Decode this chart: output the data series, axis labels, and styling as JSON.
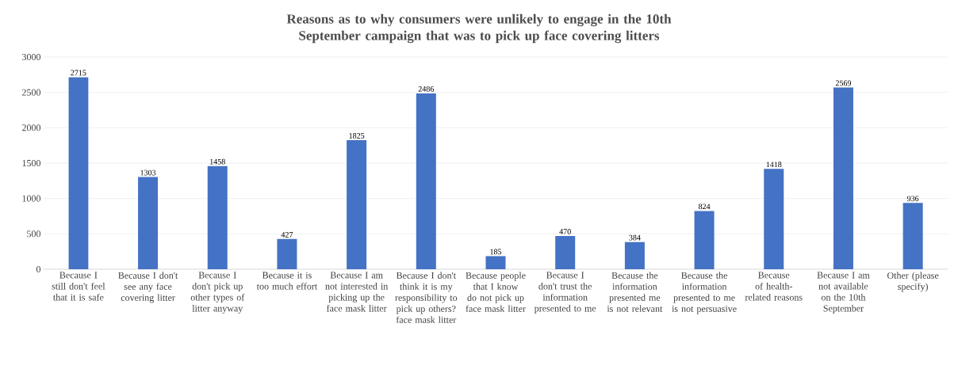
{
  "chart_data": {
    "type": "bar",
    "title": "Reasons as to why consumers were unlikely to engage in the 10th September campaign that was to pick up face covering litters",
    "categories": [
      "Because I still don't feel that it is safe",
      "Because I don't see any face covering litter",
      "Because I don't pick up other types of litter anyway",
      "Because it is too much effort",
      "Because I am not interested in picking up the face mask litter",
      "Because I don't think it is my responsibility to pick up others? face mask litter",
      "Because people that I know do not pick up face mask litter",
      "Because I don't trust the information presented to me",
      "Because the information presented me is not relevant",
      "Because the information presented to me is not persuasive",
      "Because of health-related reasons",
      "Because I am not available on the 10th September",
      "Other (please specify)"
    ],
    "values": [
      2715,
      1303,
      1458,
      427,
      1825,
      2486,
      185,
      470,
      384,
      824,
      1418,
      2569,
      936
    ],
    "color": "#4472c4",
    "ylim": [
      0,
      3000
    ],
    "yticks": [
      0,
      500,
      1000,
      1500,
      2000,
      2500,
      3000
    ],
    "grid": "y",
    "data_labels": true
  }
}
